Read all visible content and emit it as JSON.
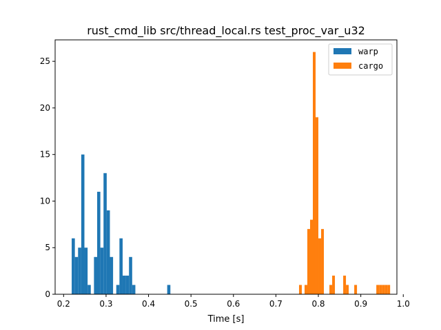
{
  "chart_data": {
    "type": "bar",
    "title": "rust_cmd_lib src/thread_local.rs test_proc_var_u32",
    "xlabel": "Time [s]",
    "ylabel": "",
    "xlim": [
      0.18,
      0.985
    ],
    "ylim": [
      0,
      27.3
    ],
    "xticks": [
      "0.2",
      "0.3",
      "0.4",
      "0.5",
      "0.6",
      "0.7",
      "0.8",
      "0.9",
      "1.0"
    ],
    "yticks": [
      "0",
      "5",
      "10",
      "15",
      "20",
      "25"
    ],
    "grid": false,
    "legend_position": "top-right",
    "series": [
      {
        "name": "warp",
        "color": "#1f77b4",
        "bins": [
          {
            "start": 0.219,
            "end": 0.2265,
            "count": 6
          },
          {
            "start": 0.2265,
            "end": 0.234,
            "count": 4
          },
          {
            "start": 0.234,
            "end": 0.2415,
            "count": 5
          },
          {
            "start": 0.2415,
            "end": 0.249,
            "count": 15
          },
          {
            "start": 0.249,
            "end": 0.2565,
            "count": 5
          },
          {
            "start": 0.2565,
            "end": 0.264,
            "count": 1
          },
          {
            "start": 0.2715,
            "end": 0.279,
            "count": 4
          },
          {
            "start": 0.279,
            "end": 0.2865,
            "count": 11
          },
          {
            "start": 0.2865,
            "end": 0.294,
            "count": 5
          },
          {
            "start": 0.294,
            "end": 0.3015,
            "count": 13
          },
          {
            "start": 0.3015,
            "end": 0.309,
            "count": 9
          },
          {
            "start": 0.309,
            "end": 0.3165,
            "count": 4
          },
          {
            "start": 0.324,
            "end": 0.3315,
            "count": 1
          },
          {
            "start": 0.3315,
            "end": 0.339,
            "count": 6
          },
          {
            "start": 0.339,
            "end": 0.3465,
            "count": 2
          },
          {
            "start": 0.3465,
            "end": 0.354,
            "count": 2
          },
          {
            "start": 0.354,
            "end": 0.3615,
            "count": 4
          },
          {
            "start": 0.3615,
            "end": 0.369,
            "count": 1
          },
          {
            "start": 0.444,
            "end": 0.4515,
            "count": 1
          }
        ]
      },
      {
        "name": "cargo",
        "color": "#ff7f0e",
        "bins": [
          {
            "start": 0.7545,
            "end": 0.761,
            "count": 1
          },
          {
            "start": 0.7675,
            "end": 0.774,
            "count": 1
          },
          {
            "start": 0.774,
            "end": 0.7805,
            "count": 7
          },
          {
            "start": 0.7805,
            "end": 0.787,
            "count": 8
          },
          {
            "start": 0.787,
            "end": 0.7935,
            "count": 26
          },
          {
            "start": 0.7935,
            "end": 0.8,
            "count": 19
          },
          {
            "start": 0.8,
            "end": 0.8065,
            "count": 6
          },
          {
            "start": 0.8065,
            "end": 0.813,
            "count": 7
          },
          {
            "start": 0.826,
            "end": 0.8325,
            "count": 1
          },
          {
            "start": 0.8325,
            "end": 0.839,
            "count": 2
          },
          {
            "start": 0.8585,
            "end": 0.865,
            "count": 2
          },
          {
            "start": 0.865,
            "end": 0.8715,
            "count": 1
          },
          {
            "start": 0.8845,
            "end": 0.891,
            "count": 1
          },
          {
            "start": 0.9365,
            "end": 0.943,
            "count": 1
          },
          {
            "start": 0.943,
            "end": 0.9495,
            "count": 1
          },
          {
            "start": 0.9495,
            "end": 0.956,
            "count": 1
          },
          {
            "start": 0.956,
            "end": 0.9625,
            "count": 1
          },
          {
            "start": 0.9625,
            "end": 0.969,
            "count": 1
          }
        ]
      }
    ]
  }
}
